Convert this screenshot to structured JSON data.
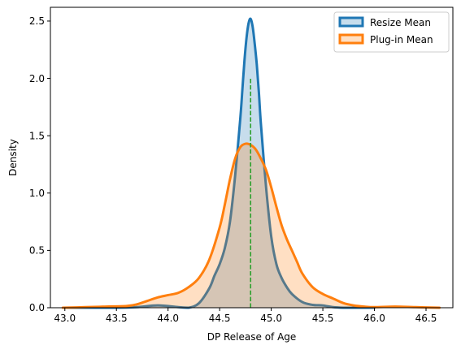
{
  "chart_data": {
    "type": "area",
    "title": "",
    "xlabel": "DP Release of Age",
    "ylabel": "Density",
    "xlim": [
      42.86,
      46.76
    ],
    "ylim": [
      0,
      2.62
    ],
    "xticks": [
      43.0,
      43.5,
      44.0,
      44.5,
      45.0,
      45.5,
      46.0,
      46.5
    ],
    "xtick_labels": [
      "43.0",
      "43.5",
      "44.0",
      "44.5",
      "45.0",
      "45.5",
      "46.0",
      "46.5"
    ],
    "yticks": [
      0.0,
      0.5,
      1.0,
      1.5,
      2.0,
      2.5
    ],
    "ytick_labels": [
      "0.0",
      "0.5",
      "1.0",
      "1.5",
      "2.0",
      "2.5"
    ],
    "grid": false,
    "legend_position": "upper right",
    "series": [
      {
        "name": "Resize Mean",
        "color": "#1f77b4",
        "fill_color": "#1f77b4",
        "x": [
          43.0,
          43.5,
          43.7,
          43.9,
          44.1,
          44.2,
          44.3,
          44.4,
          44.45,
          44.5,
          44.55,
          44.6,
          44.65,
          44.7,
          44.72,
          44.74,
          44.76,
          44.78,
          44.8,
          44.82,
          44.84,
          44.86,
          44.88,
          44.9,
          44.95,
          45.0,
          45.05,
          45.1,
          45.15,
          45.2,
          45.3,
          45.4,
          45.5,
          45.6,
          45.7,
          45.8,
          46.0
        ],
        "y": [
          0.0,
          0.0,
          0.005,
          0.02,
          0.005,
          0.0,
          0.04,
          0.17,
          0.28,
          0.38,
          0.52,
          0.75,
          1.15,
          1.65,
          1.9,
          2.15,
          2.35,
          2.48,
          2.52,
          2.45,
          2.3,
          2.12,
          1.88,
          1.6,
          1.05,
          0.62,
          0.38,
          0.26,
          0.18,
          0.12,
          0.05,
          0.025,
          0.02,
          0.005,
          0.0,
          0.0,
          0.0
        ]
      },
      {
        "name": "Plug-in Mean",
        "color": "#ff7f0e",
        "fill_color": "#ff7f0e",
        "x": [
          42.98,
          43.2,
          43.4,
          43.6,
          43.7,
          43.8,
          43.9,
          44.0,
          44.1,
          44.2,
          44.3,
          44.4,
          44.5,
          44.55,
          44.6,
          44.65,
          44.7,
          44.75,
          44.8,
          44.85,
          44.9,
          44.95,
          45.0,
          45.05,
          45.1,
          45.15,
          45.2,
          45.25,
          45.3,
          45.4,
          45.5,
          45.6,
          45.7,
          45.8,
          45.9,
          46.0,
          46.2,
          46.4,
          46.63
        ],
        "y": [
          0.0,
          0.005,
          0.01,
          0.015,
          0.03,
          0.06,
          0.09,
          0.11,
          0.13,
          0.18,
          0.26,
          0.42,
          0.7,
          0.9,
          1.12,
          1.3,
          1.4,
          1.43,
          1.42,
          1.38,
          1.3,
          1.2,
          1.05,
          0.88,
          0.72,
          0.6,
          0.5,
          0.4,
          0.3,
          0.18,
          0.12,
          0.08,
          0.04,
          0.02,
          0.01,
          0.005,
          0.01,
          0.005,
          0.0
        ]
      }
    ],
    "annotations": [
      {
        "type": "vline",
        "x": 44.8,
        "y_from": 0,
        "y_to": 2.0,
        "style": "dashed",
        "color": "#2ca02c"
      }
    ]
  }
}
